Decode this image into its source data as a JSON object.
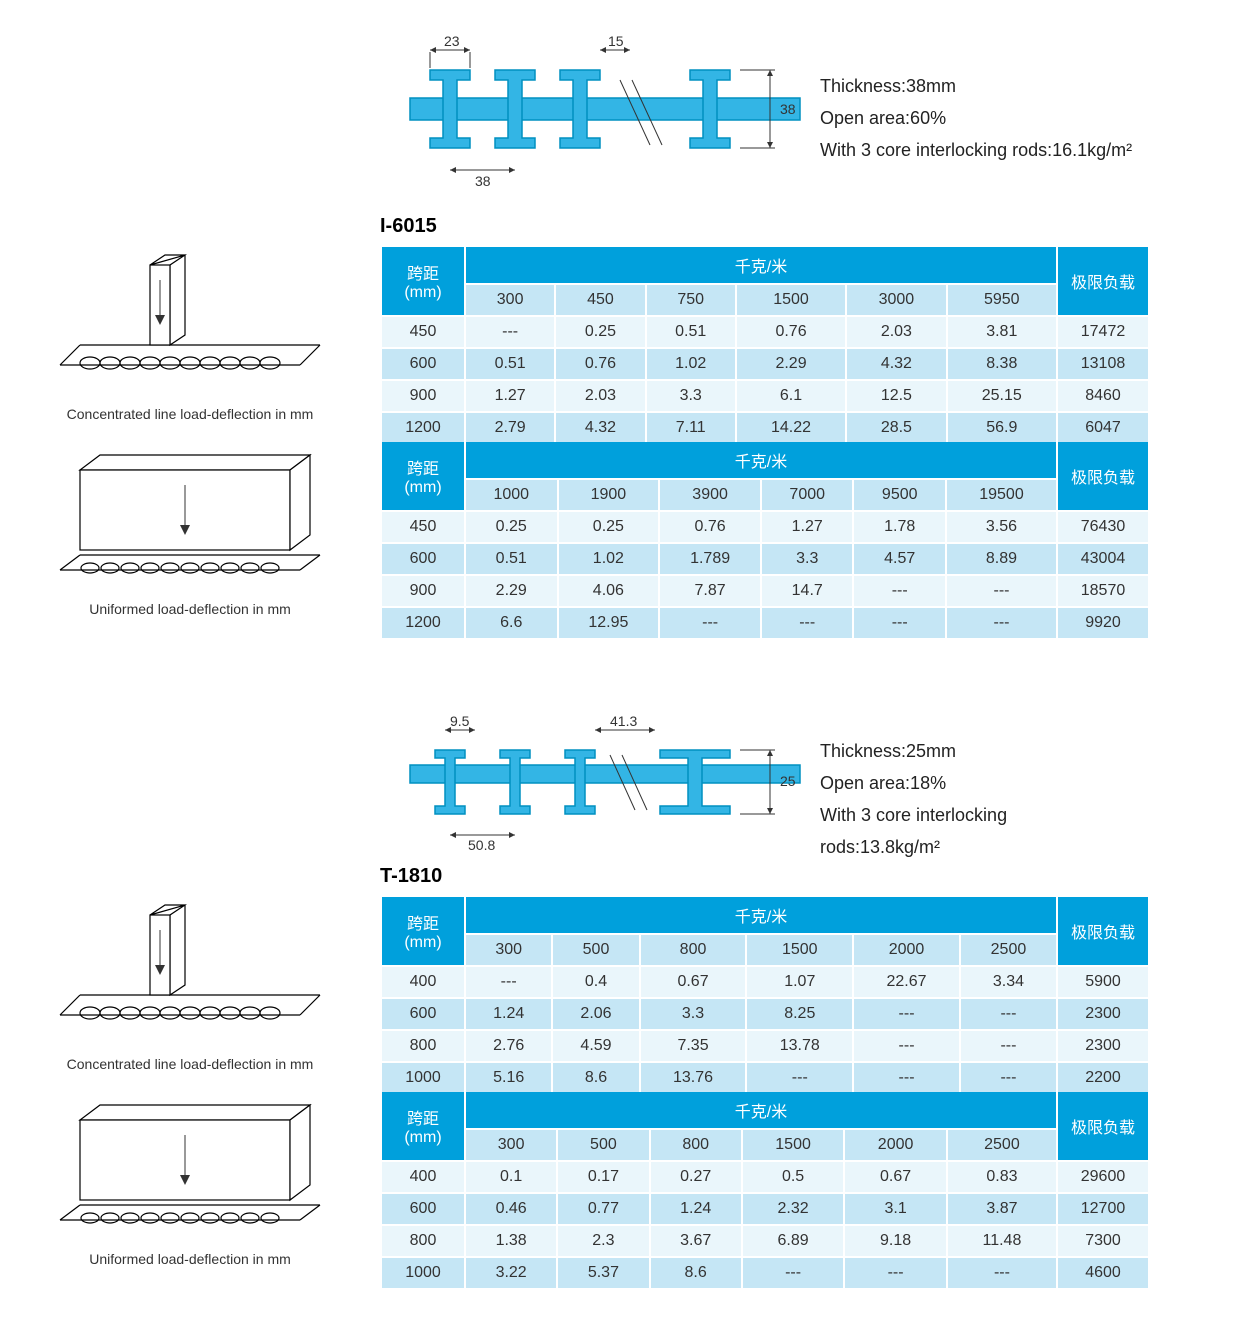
{
  "colors": {
    "header_bg": "#00a0dc",
    "header_text": "#ffffff",
    "row_light": "#eaf6fb",
    "row_dark": "#c5e6f5",
    "ibeam_fill": "#33b5e5",
    "ibeam_stroke": "#0090c0",
    "text": "#333333",
    "page_bg": "#ffffff"
  },
  "typography": {
    "body_fontsize": 16,
    "label_fontsize": 20,
    "spec_fontsize": 18,
    "caption_fontsize": 14
  },
  "sections": [
    {
      "product": "I-6015",
      "cross_section": {
        "top_width": "23",
        "secondary_width": "15",
        "bottom_spacing": "38",
        "overall_height": "38"
      },
      "specs": [
        "Thickness:38mm",
        "Open area:60%",
        "With 3 core interlocking rods:16.1kg/m²"
      ],
      "illust_captions": [
        "Concentrated line load-deflection in mm",
        "Uniformed load-deflection in mm"
      ],
      "tables": [
        {
          "span_header": "跨距\n(mm)",
          "group_header": "千克/米",
          "limit_header": "极限负载",
          "columns": [
            "300",
            "450",
            "750",
            "1500",
            "3000",
            "5950"
          ],
          "rows": [
            {
              "span": "450",
              "v": [
                "---",
                "0.25",
                "0.51",
                "0.76",
                "2.03",
                "3.81"
              ],
              "limit": "17472"
            },
            {
              "span": "600",
              "v": [
                "0.51",
                "0.76",
                "1.02",
                "2.29",
                "4.32",
                "8.38"
              ],
              "limit": "13108"
            },
            {
              "span": "900",
              "v": [
                "1.27",
                "2.03",
                "3.3",
                "6.1",
                "12.5",
                "25.15"
              ],
              "limit": "8460"
            },
            {
              "span": "1200",
              "v": [
                "2.79",
                "4.32",
                "7.11",
                "14.22",
                "28.5",
                "56.9"
              ],
              "limit": "6047"
            }
          ]
        },
        {
          "span_header": "跨距\n(mm)",
          "group_header": "千克/米",
          "limit_header": "极限负载",
          "columns": [
            "1000",
            "1900",
            "3900",
            "7000",
            "9500",
            "19500"
          ],
          "rows": [
            {
              "span": "450",
              "v": [
                "0.25",
                "0.25",
                "0.76",
                "1.27",
                "1.78",
                "3.56"
              ],
              "limit": "76430"
            },
            {
              "span": "600",
              "v": [
                "0.51",
                "1.02",
                "1.789",
                "3.3",
                "4.57",
                "8.89"
              ],
              "limit": "43004"
            },
            {
              "span": "900",
              "v": [
                "2.29",
                "4.06",
                "7.87",
                "14.7",
                "---",
                "---"
              ],
              "limit": "18570"
            },
            {
              "span": "1200",
              "v": [
                "6.6",
                "12.95",
                "---",
                "---",
                "---",
                "---"
              ],
              "limit": "9920"
            }
          ]
        }
      ]
    },
    {
      "product": "T-1810",
      "cross_section": {
        "top_width": "9.5",
        "secondary_width": "41.3",
        "bottom_spacing": "50.8",
        "overall_height": "25"
      },
      "specs": [
        "Thickness:25mm",
        "Open area:18%",
        "With 3 core interlocking",
        "rods:13.8kg/m²"
      ],
      "illust_captions": [
        "Concentrated line load-deflection in mm",
        "Uniformed load-deflection in mm"
      ],
      "tables": [
        {
          "span_header": "跨距\n(mm)",
          "group_header": "千克/米",
          "limit_header": "极限负载",
          "columns": [
            "300",
            "500",
            "800",
            "1500",
            "2000",
            "2500"
          ],
          "rows": [
            {
              "span": "400",
              "v": [
                "---",
                "0.4",
                "0.67",
                "1.07",
                "22.67",
                "3.34"
              ],
              "limit": "5900"
            },
            {
              "span": "600",
              "v": [
                "1.24",
                "2.06",
                "3.3",
                "8.25",
                "---",
                "---"
              ],
              "limit": "2300"
            },
            {
              "span": "800",
              "v": [
                "2.76",
                "4.59",
                "7.35",
                "13.78",
                "---",
                "---"
              ],
              "limit": "2300"
            },
            {
              "span": "1000",
              "v": [
                "5.16",
                "8.6",
                "13.76",
                "---",
                "---",
                "---"
              ],
              "limit": "2200"
            }
          ]
        },
        {
          "span_header": "跨距\n(mm)",
          "group_header": "千克/米",
          "limit_header": "极限负载",
          "columns": [
            "300",
            "500",
            "800",
            "1500",
            "2000",
            "2500"
          ],
          "rows": [
            {
              "span": "400",
              "v": [
                "0.1",
                "0.17",
                "0.27",
                "0.5",
                "0.67",
                "0.83"
              ],
              "limit": "29600"
            },
            {
              "span": "600",
              "v": [
                "0.46",
                "0.77",
                "1.24",
                "2.32",
                "3.1",
                "3.87"
              ],
              "limit": "12700"
            },
            {
              "span": "800",
              "v": [
                "1.38",
                "2.3",
                "3.67",
                "6.89",
                "9.18",
                "11.48"
              ],
              "limit": "7300"
            },
            {
              "span": "1000",
              "v": [
                "3.22",
                "5.37",
                "8.6",
                "---",
                "---",
                "---"
              ],
              "limit": "4600"
            }
          ]
        }
      ]
    }
  ]
}
